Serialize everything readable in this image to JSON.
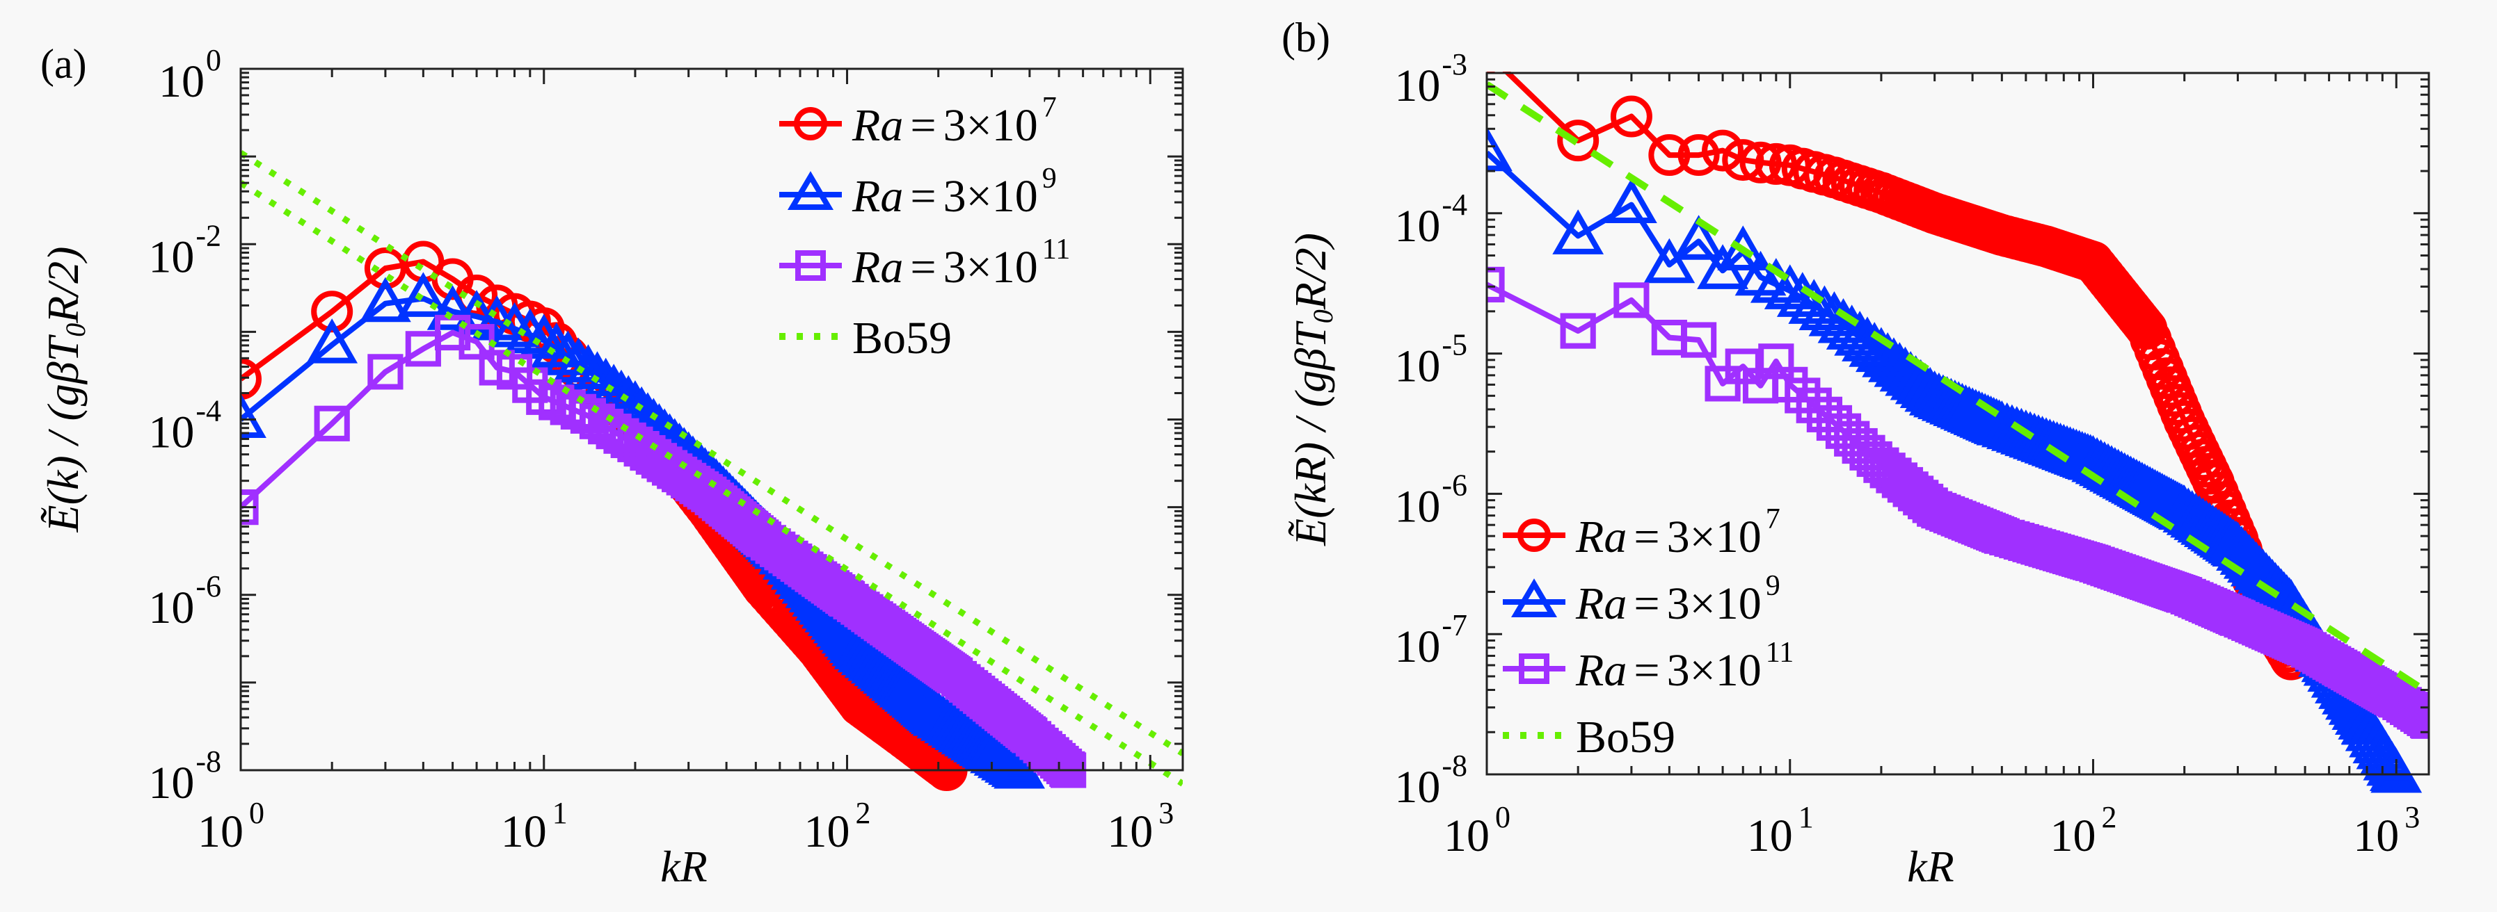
{
  "figure": {
    "background": "#f8f8f8"
  },
  "chart_data": [
    {
      "id": "a",
      "type": "line",
      "panel_label": "(a)",
      "title": "",
      "xlabel": "kR",
      "ylabel": "Ẽ(k)/(gβT₀R/2)",
      "xscale": "log",
      "yscale": "log",
      "xlim": [
        1,
        1280
      ],
      "ylim": [
        1e-08,
        1
      ],
      "xticks": [
        {
          "base": "10",
          "exp": "0",
          "value": 1
        },
        {
          "base": "10",
          "exp": "1",
          "value": 10
        },
        {
          "base": "10",
          "exp": "2",
          "value": 100
        },
        {
          "base": "10",
          "exp": "3",
          "value": 1000
        }
      ],
      "yticks": [
        {
          "base": "10",
          "exp": "0",
          "value": 1
        },
        {
          "base": "10",
          "exp": "-2",
          "value": 0.01
        },
        {
          "base": "10",
          "exp": "-4",
          "value": 0.0001
        },
        {
          "base": "10",
          "exp": "-6",
          "value": 1e-06
        },
        {
          "base": "10",
          "exp": "-8",
          "value": 1e-08
        }
      ],
      "grid": false,
      "legend_position": "top-right",
      "series": [
        {
          "name": "Ra = 3×10^7",
          "label_var": "Ra",
          "label_eq": "=",
          "label_num": "3×10",
          "label_exp": "7",
          "color": "#ff0000",
          "marker": "circle",
          "linestyle": "solid",
          "k": [
            1,
            2,
            3,
            4,
            5,
            6,
            7,
            10,
            14,
            20,
            26,
            35,
            53,
            80,
            110,
            150,
            213
          ],
          "E": [
            0.00029,
            0.0017,
            0.0053,
            0.0063,
            0.004,
            0.0026,
            0.002,
            0.0011,
            0.00028,
            0.0001,
            3.4e-05,
            9e-06,
            1.2e-06,
            2.4e-07,
            5.5e-08,
            2.5e-08,
            1e-08
          ]
        },
        {
          "name": "Ra = 3×10^9",
          "label_var": "Ra",
          "label_eq": "=",
          "label_num": "3×10",
          "label_exp": "9",
          "color": "#0033ff",
          "marker": "triangle",
          "linestyle": "solid",
          "k": [
            1,
            2,
            3,
            4,
            5,
            6,
            7,
            10,
            14,
            20,
            35,
            60,
            110,
            200,
            300,
            370
          ],
          "E": [
            0.0001,
            0.00071,
            0.0021,
            0.0024,
            0.0017,
            0.0015,
            0.0013,
            0.0008,
            0.00036,
            0.00014,
            2.2e-05,
            3.2e-06,
            2.3e-07,
            4e-08,
            1.6e-08,
            1e-08
          ]
        },
        {
          "name": "Ra = 3×10^11",
          "label_var": "Ra",
          "label_eq": "=",
          "label_num": "3×10",
          "label_exp": "11",
          "color": "#a030ff",
          "marker": "square",
          "linestyle": "solid",
          "k": [
            1,
            2,
            3,
            4,
            5,
            6,
            7,
            8,
            10,
            14,
            20,
            35,
            53,
            100,
            227,
            400,
            537
          ],
          "E": [
            1e-05,
            9e-05,
            0.00035,
            0.00064,
            0.00098,
            0.00077,
            0.00039,
            0.00035,
            0.00018,
            0.00011,
            5.2e-05,
            1.4e-05,
            4.3e-06,
            9e-07,
            1.2e-07,
            2.5e-08,
            1e-08
          ]
        },
        {
          "name": "Bo59",
          "label_var": "",
          "label_eq": "",
          "label_num": "Bo59",
          "label_exp": "",
          "color": "#66ee00",
          "marker": "none",
          "linestyle": "dotted",
          "lines": [
            {
              "k": [
                1,
                1280
              ],
              "E": [
                0.11,
                1.55e-08
              ],
              "slope": -2.2
            },
            {
              "k": [
                1,
                1280
              ],
              "E": [
                0.05,
                7e-09
              ],
              "slope": -2.2
            }
          ]
        }
      ]
    },
    {
      "id": "b",
      "type": "line",
      "panel_label": "(b)",
      "title": "",
      "xlabel": "kR",
      "ylabel": "Ẽ(kR)/(gβT₀R/2)",
      "xscale": "log",
      "yscale": "log",
      "xlim": [
        1,
        1280
      ],
      "ylim": [
        1e-08,
        0.001
      ],
      "xticks": [
        {
          "base": "10",
          "exp": "0",
          "value": 1
        },
        {
          "base": "10",
          "exp": "1",
          "value": 10
        },
        {
          "base": "10",
          "exp": "2",
          "value": 100
        },
        {
          "base": "10",
          "exp": "3",
          "value": 1000
        }
      ],
      "yticks": [
        {
          "base": "10",
          "exp": "-3",
          "value": 0.001
        },
        {
          "base": "10",
          "exp": "-4",
          "value": 0.0001
        },
        {
          "base": "10",
          "exp": "-5",
          "value": 1e-05
        },
        {
          "base": "10",
          "exp": "-6",
          "value": 1e-06
        },
        {
          "base": "10",
          "exp": "-7",
          "value": 1e-07
        },
        {
          "base": "10",
          "exp": "-8",
          "value": 1e-08
        }
      ],
      "grid": false,
      "legend_position": "bottom-left",
      "series": [
        {
          "name": "Ra = 3×10^7",
          "label_var": "Ra",
          "label_eq": "=",
          "label_num": "3×10",
          "label_exp": "7",
          "color": "#ff0000",
          "marker": "circle",
          "linestyle": "solid",
          "k": [
            1,
            2,
            3,
            4,
            5,
            6,
            7,
            8,
            10,
            14,
            20,
            30,
            50,
            70,
            100,
            150,
            200,
            250,
            300,
            380,
            450
          ],
          "E": [
            0.0014,
            0.00033,
            0.00049,
            0.00026,
            0.00026,
            0.00028,
            0.00024,
            0.00023,
            0.00022,
            0.00018,
            0.00014,
            0.0001,
            7e-05,
            5.8e-05,
            4.5e-05,
            1.5e-05,
            3.3e-06,
            1.2e-06,
            4.7e-07,
            1.2e-07,
            6.6e-08
          ]
        },
        {
          "name": "Ra = 3×10^9",
          "label_var": "Ra",
          "label_eq": "=",
          "label_num": "3×10",
          "label_exp": "9",
          "color": "#0033ff",
          "marker": "triangle",
          "linestyle": "solid",
          "k": [
            1,
            2,
            3,
            4,
            5,
            6,
            7,
            8,
            10,
            14,
            20,
            30,
            50,
            100,
            200,
            300,
            450,
            600,
            800,
            1000
          ],
          "E": [
            0.00027,
            6.9e-05,
            0.000115,
            4.3e-05,
            6.3e-05,
            3.9e-05,
            5.3e-05,
            3.5e-05,
            2.8e-05,
            1.8e-05,
            1e-05,
            4.9e-06,
            3e-06,
            1.7e-06,
            7.5e-07,
            4.1e-07,
            1.6e-07,
            5.8e-08,
            2.2e-08,
            1e-08
          ]
        },
        {
          "name": "Ra = 3×10^11",
          "label_var": "Ra",
          "label_eq": "=",
          "label_num": "3×10",
          "label_exp": "11",
          "color": "#a030ff",
          "marker": "square",
          "linestyle": "solid",
          "k": [
            1,
            2,
            3,
            4,
            5,
            6,
            7,
            8,
            9,
            10,
            14,
            20,
            30,
            50,
            100,
            200,
            300,
            500,
            1000,
            1280
          ],
          "E": [
            3.1e-05,
            1.45e-05,
            2.4e-05,
            1.3e-05,
            1.25e-05,
            6.1e-06,
            8.1e-06,
            5.9e-06,
            8.8e-06,
            6e-06,
            3.2e-06,
            1.6e-06,
            7.8e-07,
            5e-07,
            3.2e-07,
            1.9e-07,
            1.3e-07,
            8e-08,
            3.4e-08,
            2.4e-08
          ]
        },
        {
          "name": "Bo59",
          "label_var": "",
          "label_eq": "",
          "label_num": "Bo59",
          "label_exp": "",
          "color": "#66ee00",
          "marker": "none",
          "linestyle": "dashed",
          "legend_linestyle": "dotted",
          "lines": [
            {
              "k": [
                1,
                1280
              ],
              "E": [
                0.00083,
                3.8e-08
              ],
              "slope": -1.4
            }
          ]
        }
      ]
    }
  ]
}
